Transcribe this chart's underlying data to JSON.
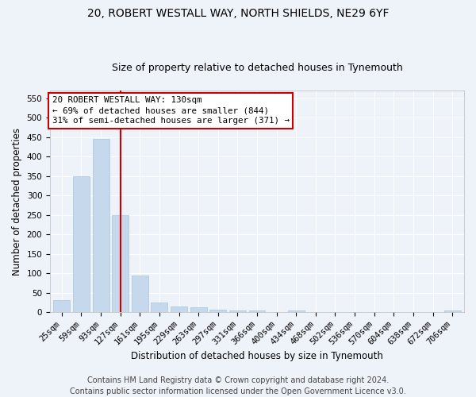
{
  "title1": "20, ROBERT WESTALL WAY, NORTH SHIELDS, NE29 6YF",
  "title2": "Size of property relative to detached houses in Tynemouth",
  "xlabel": "Distribution of detached houses by size in Tynemouth",
  "ylabel": "Number of detached properties",
  "categories": [
    "25sqm",
    "59sqm",
    "93sqm",
    "127sqm",
    "161sqm",
    "195sqm",
    "229sqm",
    "263sqm",
    "297sqm",
    "331sqm",
    "366sqm",
    "400sqm",
    "434sqm",
    "468sqm",
    "502sqm",
    "536sqm",
    "570sqm",
    "604sqm",
    "638sqm",
    "672sqm",
    "706sqm"
  ],
  "values": [
    30,
    350,
    445,
    250,
    95,
    25,
    15,
    12,
    6,
    5,
    4,
    0,
    4,
    0,
    0,
    0,
    0,
    0,
    0,
    0,
    4
  ],
  "bar_color": "#c5d8ec",
  "bar_edgecolor": "#a8c4dc",
  "vline_x_index": 3,
  "vline_color": "#cc0000",
  "annotation_line1": "20 ROBERT WESTALL WAY: 130sqm",
  "annotation_line2": "← 69% of detached houses are smaller (844)",
  "annotation_line3": "31% of semi-detached houses are larger (371) →",
  "annotation_box_color": "#ffffff",
  "annotation_box_edgecolor": "#cc0000",
  "footer1": "Contains HM Land Registry data © Crown copyright and database right 2024.",
  "footer2": "Contains public sector information licensed under the Open Government Licence v3.0.",
  "ylim": [
    0,
    570
  ],
  "yticks": [
    0,
    50,
    100,
    150,
    200,
    250,
    300,
    350,
    400,
    450,
    500,
    550
  ],
  "background_color": "#eef2f9",
  "grid_color": "#ffffff",
  "title1_fontsize": 10,
  "title2_fontsize": 9,
  "axis_label_fontsize": 8.5,
  "tick_fontsize": 7.5,
  "annotation_fontsize": 7.8,
  "footer_fontsize": 7
}
